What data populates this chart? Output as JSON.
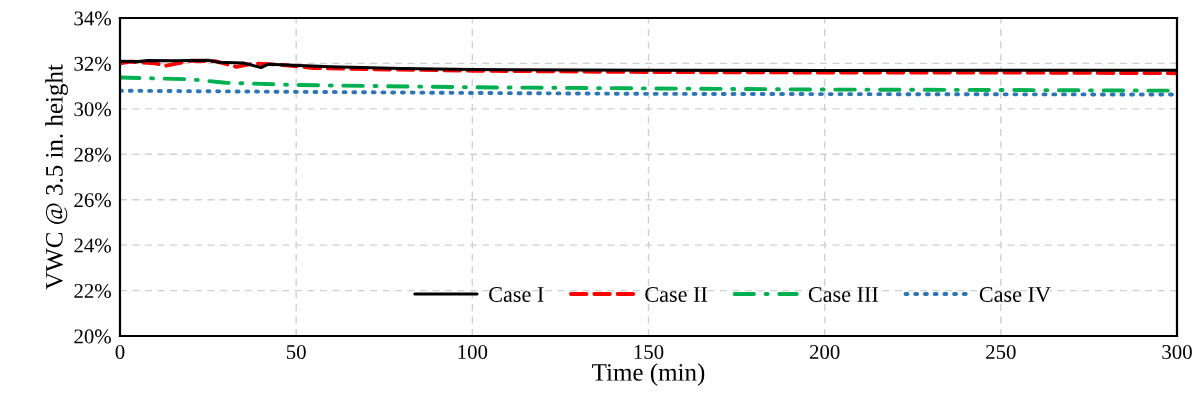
{
  "chart_data": {
    "type": "line",
    "xlabel": "Time (min)",
    "ylabel": "VWC @ 3.5 in. height",
    "xlim": [
      0,
      300
    ],
    "xticks": [
      0,
      50,
      100,
      150,
      200,
      250,
      300
    ],
    "ylim": [
      20,
      34
    ],
    "yticks": [
      {
        "value": 20,
        "label": "20%"
      },
      {
        "value": 22,
        "label": "22%"
      },
      {
        "value": 24,
        "label": "24%"
      },
      {
        "value": 26,
        "label": "26%"
      },
      {
        "value": 28,
        "label": "28%"
      },
      {
        "value": 30,
        "label": "30%"
      },
      {
        "value": 32,
        "label": "32%"
      },
      {
        "value": 34,
        "label": "34%"
      }
    ],
    "grid": true,
    "legend": "bottom right",
    "marker": "none",
    "series": [
      {
        "name": "Case I",
        "color": "#000000",
        "line_style": "solid",
        "x": [
          0,
          5,
          8,
          15,
          25,
          28,
          35,
          40,
          42,
          60,
          80,
          100,
          150,
          200,
          250,
          300
        ],
        "values": [
          32.1,
          32.08,
          32.13,
          32.12,
          32.14,
          32.05,
          32.02,
          31.82,
          31.96,
          31.85,
          31.78,
          31.73,
          31.7,
          31.69,
          31.7,
          31.7
        ]
      },
      {
        "name": "Case II",
        "color": "#ff0000",
        "line_style": "dashed",
        "x": [
          0,
          3,
          10,
          13,
          20,
          27,
          33,
          38,
          45,
          55,
          70,
          100,
          150,
          200,
          250,
          300
        ],
        "values": [
          32.0,
          32.08,
          32.0,
          31.9,
          32.12,
          32.1,
          31.85,
          32.0,
          31.95,
          31.8,
          31.75,
          31.68,
          31.62,
          31.6,
          31.6,
          31.57
        ]
      },
      {
        "name": "Case III",
        "color": "#00b050",
        "line_style": "dashdot",
        "x": [
          0,
          20,
          30,
          50,
          100,
          150,
          200,
          250,
          300
        ],
        "values": [
          31.38,
          31.3,
          31.15,
          31.05,
          30.95,
          30.9,
          30.85,
          30.83,
          30.8
        ]
      },
      {
        "name": "Case IV",
        "color": "#2e75b6",
        "line_style": "dotted",
        "x": [
          0,
          50,
          100,
          150,
          200,
          300
        ],
        "values": [
          30.8,
          30.75,
          30.7,
          30.66,
          30.65,
          30.63
        ]
      }
    ]
  }
}
